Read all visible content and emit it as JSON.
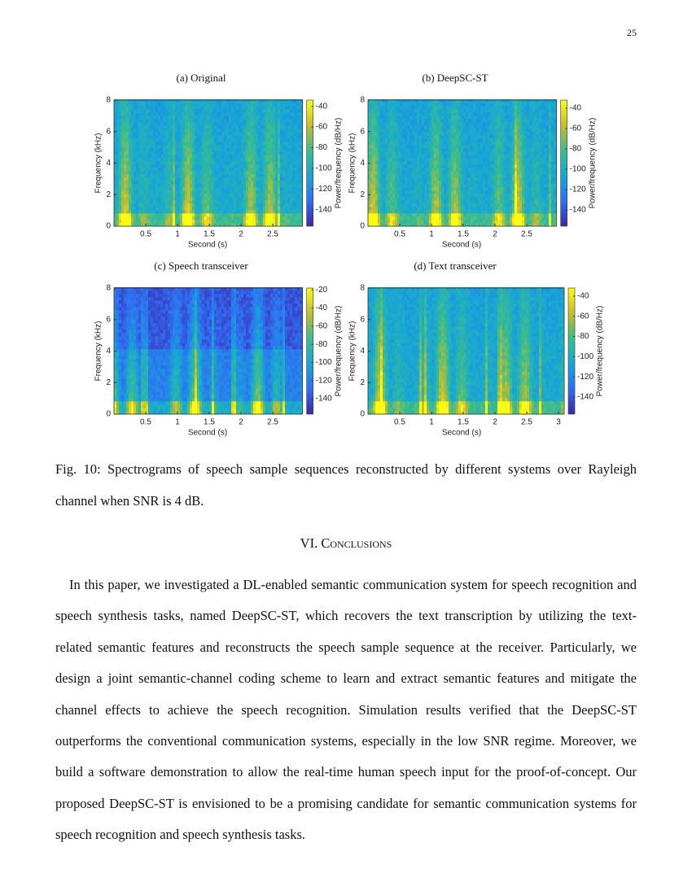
{
  "page_number": "25",
  "chart_data": [
    {
      "type": "spectrogram",
      "title": "(a) Original",
      "xlabel": "Second (s)",
      "ylabel": "Frequency (kHz)",
      "colorbar_label": "Power/frequency (dB/Hz)",
      "xlim": [
        0,
        2.97
      ],
      "xticks": [
        0.5,
        1,
        1.5,
        2,
        2.5
      ],
      "ylim": [
        0,
        8
      ],
      "yticks": [
        0,
        2,
        4,
        6,
        8
      ],
      "clim": [
        -156,
        -34
      ],
      "cticks": [
        -40,
        -60,
        -80,
        -100,
        -120,
        -140
      ]
    },
    {
      "type": "spectrogram",
      "title": "(b) DeepSC-ST",
      "xlabel": "Second (s)",
      "ylabel": "Frequency (kHz)",
      "colorbar_label": "Power/frequency (dB/Hz)",
      "xlim": [
        0,
        2.97
      ],
      "xticks": [
        0.5,
        1,
        1.5,
        2,
        2.5
      ],
      "ylim": [
        0,
        8
      ],
      "yticks": [
        0,
        2,
        4,
        6,
        8
      ],
      "clim": [
        -156,
        -32
      ],
      "cticks": [
        -40,
        -60,
        -80,
        -100,
        -120,
        -140
      ]
    },
    {
      "type": "spectrogram",
      "title": "(c) Speech transceiver",
      "xlabel": "Second (s)",
      "ylabel": "Frequency (kHz)",
      "colorbar_label": "Power/frequency (dB/Hz)",
      "xlim": [
        0,
        2.97
      ],
      "xticks": [
        0.5,
        1,
        1.5,
        2,
        2.5
      ],
      "ylim": [
        0,
        8
      ],
      "yticks": [
        0,
        2,
        4,
        6,
        8
      ],
      "clim": [
        -157,
        -18
      ],
      "cticks": [
        -20,
        -40,
        -60,
        -80,
        -100,
        -120,
        -140
      ]
    },
    {
      "type": "spectrogram",
      "title": "(d) Text transceiver",
      "xlabel": "Second (s)",
      "ylabel": "Frequency (kHz)",
      "colorbar_label": "Power/frequency (dB/Hz)",
      "xlim": [
        0,
        3.09
      ],
      "xticks": [
        0.5,
        1,
        1.5,
        2,
        2.5,
        3
      ],
      "ylim": [
        0,
        8
      ],
      "yticks": [
        0,
        2,
        4,
        6,
        8
      ],
      "clim": [
        -157,
        -32
      ],
      "cticks": [
        -40,
        -60,
        -80,
        -100,
        -120,
        -140
      ]
    }
  ],
  "figure_caption": "Fig. 10: Spectrograms of speech sample sequences reconstructed by different systems over Rayleigh channel when SNR is 4 dB.",
  "section_title": "VI. Conclusions",
  "paragraph": "In this paper, we investigated a DL-enabled semantic communication system for speech recognition and speech synthesis tasks, named DeepSC-ST, which recovers the text transcription by utilizing the text-related semantic features and reconstructs the speech sample sequence at the receiver. Particularly, we design a joint semantic-channel coding scheme to learn and extract semantic features and mitigate the channel effects to achieve the speech recognition. Simulation results verified that the DeepSC-ST outperforms the conventional communication systems, especially in the low SNR regime. Moreover, we build a software demonstration to allow the real-time human speech input for the proof-of-concept. Our proposed DeepSC-ST is envisioned to be a promising candidate for semantic communication systems for speech recognition and speech synthesis tasks."
}
